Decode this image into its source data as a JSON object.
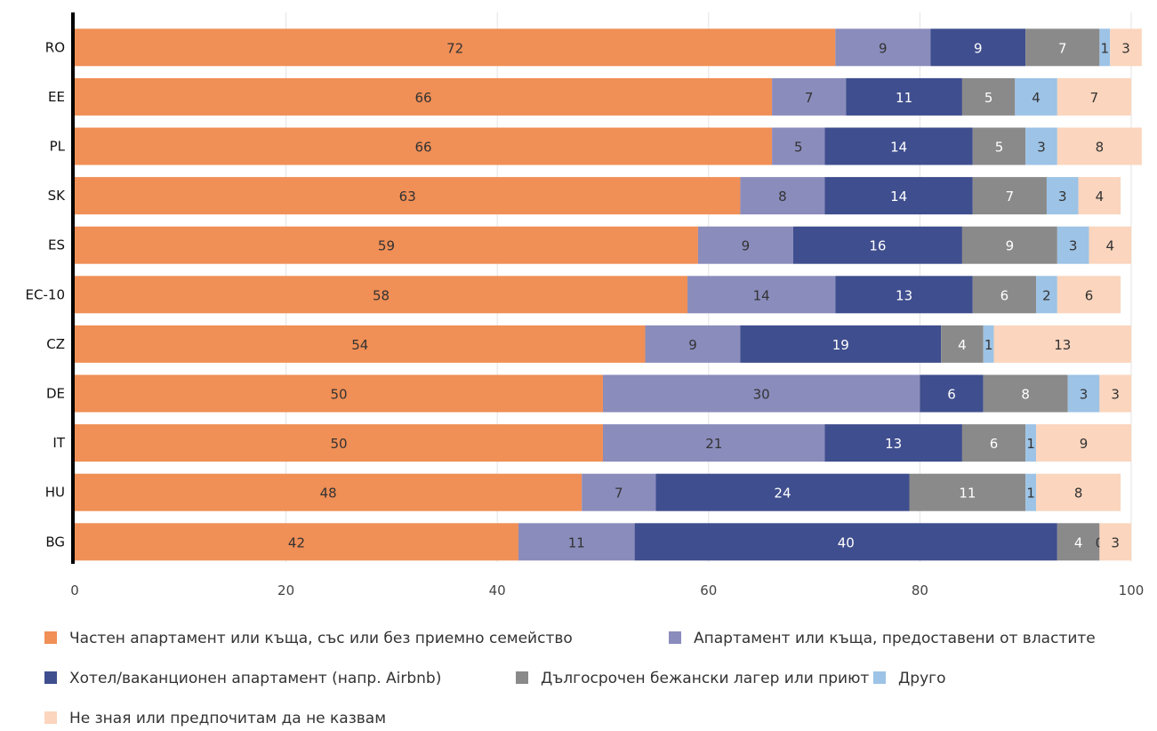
{
  "chart_data": {
    "type": "bar",
    "orientation": "horizontal",
    "stacked": true,
    "categories": [
      "RO",
      "EE",
      "PL",
      "SK",
      "ES",
      "ЕС-10",
      "CZ",
      "DE",
      "IT",
      "HU",
      "BG"
    ],
    "xlim": [
      0,
      100
    ],
    "xticks": [
      0,
      20,
      40,
      60,
      80,
      100
    ],
    "grid": true,
    "legend_position": "bottom",
    "series": [
      {
        "name": "Частен апартамент или къща, със или без приемно семейство",
        "color": "#F08F56",
        "label_color": "#333333",
        "values": [
          72,
          66,
          66,
          63,
          59,
          58,
          54,
          50,
          50,
          48,
          42
        ]
      },
      {
        "name": "Апартамент или къща, предоставени от властите",
        "color": "#8A8CBC",
        "label_color": "#333333",
        "values": [
          9,
          7,
          5,
          8,
          9,
          14,
          9,
          30,
          21,
          7,
          11
        ]
      },
      {
        "name": "Хотел/ваканционен апартамент (напр. Airbnb)",
        "color": "#3F4E8E",
        "label_color": "#ffffff",
        "values": [
          9,
          11,
          14,
          14,
          16,
          13,
          19,
          6,
          13,
          24,
          40
        ]
      },
      {
        "name": "Дългосрочен бежански лагер или приют",
        "color": "#8A8A8A",
        "label_color": "#ffffff",
        "values": [
          7,
          5,
          5,
          7,
          9,
          6,
          4,
          8,
          6,
          11,
          4
        ]
      },
      {
        "name": "Друго",
        "color": "#9DC3E6",
        "label_color": "#333333",
        "values": [
          1,
          4,
          3,
          3,
          3,
          2,
          1,
          3,
          1,
          1,
          0
        ]
      },
      {
        "name": "Не зная или предпочитам да не казвам",
        "color": "#FBD5BD",
        "label_color": "#333333",
        "values": [
          3,
          7,
          8,
          4,
          4,
          6,
          13,
          3,
          9,
          8,
          3
        ]
      }
    ]
  }
}
